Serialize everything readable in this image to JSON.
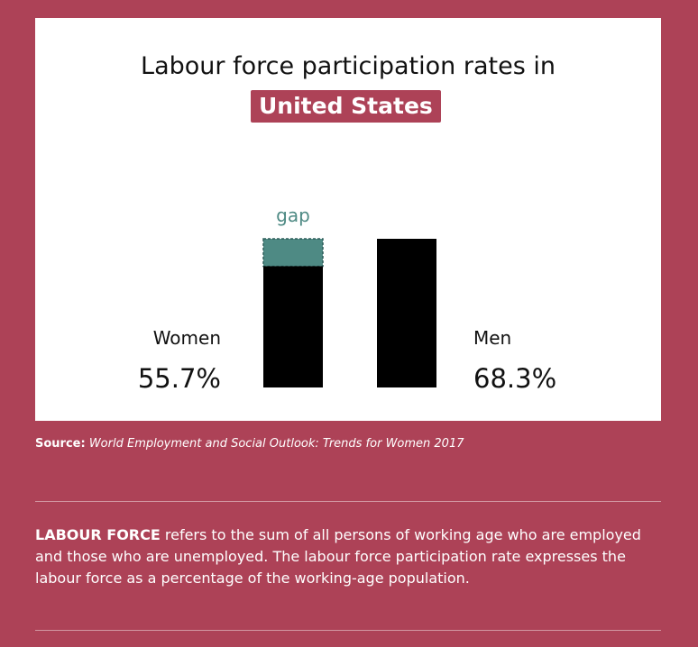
{
  "title": {
    "line1": "Labour force participation rates in",
    "country": "United States"
  },
  "chart_data": {
    "type": "bar",
    "categories": [
      "Women",
      "Men"
    ],
    "values": [
      55.7,
      68.3
    ],
    "value_labels": [
      "55.7%",
      "68.3%"
    ],
    "gap_label": "gap",
    "colors": {
      "bar": "#000000",
      "gap": "#4e8a84",
      "gap_label": "#4e8a84"
    }
  },
  "source": {
    "label": "Source:",
    "text": "World Employment and Social Outlook: Trends for Women 2017"
  },
  "definition": {
    "term": "LABOUR FORCE",
    "text": " refers to the sum of all persons of working age who are employed and those who are unemployed. The labour force participation rate expresses the labour force as a percentage of the working-age population."
  },
  "colors": {
    "background": "#ad4257",
    "card": "#ffffff"
  }
}
